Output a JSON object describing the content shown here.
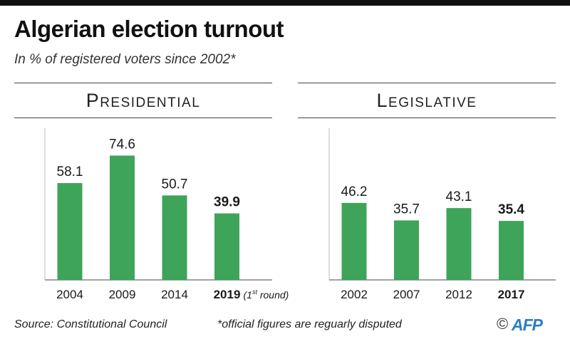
{
  "title": "Algerian election turnout",
  "subtitle": "In % of registered voters since 2002*",
  "colors": {
    "bar": "#3ea45a",
    "axis": "#444444",
    "text": "#1a1a1a",
    "logo": "#2c7fc1"
  },
  "chart_data": [
    {
      "type": "bar",
      "title": "Presidential",
      "categories": [
        "2004",
        "2009",
        "2014",
        "2019"
      ],
      "values": [
        58.1,
        74.6,
        50.7,
        39.9
      ],
      "value_labels": [
        "58.1",
        "74.6",
        "50.7",
        "39.9"
      ],
      "highlight_index": 3,
      "category_note": {
        "index": 3,
        "prefix": "(1",
        "sup": "st",
        "suffix": " round)"
      },
      "xlabel": "",
      "ylabel": "",
      "ylim": [
        0,
        80
      ],
      "grid": false
    },
    {
      "type": "bar",
      "title": "Legislative",
      "categories": [
        "2002",
        "2007",
        "2012",
        "2017"
      ],
      "values": [
        46.2,
        35.7,
        43.1,
        35.4
      ],
      "value_labels": [
        "46.2",
        "35.7",
        "43.1",
        "35.4"
      ],
      "highlight_index": 3,
      "xlabel": "",
      "ylabel": "",
      "ylim": [
        0,
        80
      ],
      "grid": false
    }
  ],
  "footer": {
    "source": "Source: Constitutional Council",
    "note": "*official figures are reguarly disputed",
    "copyright": "©",
    "logo_text": "AFP"
  }
}
